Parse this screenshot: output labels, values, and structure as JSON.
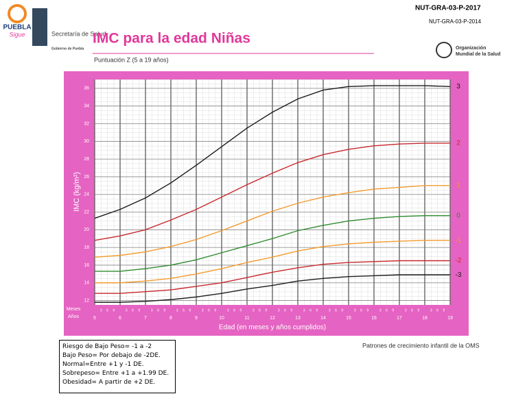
{
  "header": {
    "code_current": "NUT-GRA-03-P-2017",
    "code_previous": "NUT-GRA-03-P-2014",
    "logo_left": "PUEBLA",
    "logo_left_sub": "Sigue",
    "agency": "Secretaría de Salud",
    "agency_sub": "Gobierno de Puebla",
    "who": [
      "Organización",
      "Mundial de la Salud"
    ]
  },
  "chart_data": {
    "type": "line",
    "title": "IMC para la edad Niñas",
    "subtitle": "Puntuación Z (5 a 19 años)",
    "x_label": "Edad (en meses y años cumplidos)",
    "y_label": "IMC (kg/m²)",
    "age_labels": [
      "Meses",
      "Años"
    ],
    "month_ticks": [
      "3",
      "6",
      "9"
    ],
    "x": [
      5,
      6,
      7,
      8,
      9,
      10,
      11,
      12,
      13,
      14,
      15,
      16,
      17,
      18,
      19
    ],
    "xlim": [
      5,
      19
    ],
    "xticks": [
      5,
      6,
      7,
      8,
      9,
      10,
      11,
      12,
      13,
      14,
      15,
      16,
      17,
      18,
      19
    ],
    "ylim": [
      11.5,
      37
    ],
    "yticks": [
      12,
      14,
      16,
      18,
      20,
      22,
      24,
      26,
      28,
      30,
      32,
      34,
      36
    ],
    "grid": true,
    "series": [
      {
        "name": "3",
        "color": "#1a1a1a",
        "values": [
          21.3,
          22.3,
          23.6,
          25.3,
          27.3,
          29.4,
          31.5,
          33.3,
          34.8,
          35.8,
          36.2,
          36.3,
          36.3,
          36.3,
          36.2
        ]
      },
      {
        "name": "2",
        "color": "#c8282d",
        "values": [
          18.8,
          19.3,
          20.0,
          21.1,
          22.3,
          23.7,
          25.1,
          26.4,
          27.6,
          28.5,
          29.1,
          29.5,
          29.7,
          29.8,
          29.8
        ]
      },
      {
        "name": "1",
        "color": "#f39a2b",
        "values": [
          16.9,
          17.1,
          17.5,
          18.1,
          18.9,
          19.9,
          21.0,
          22.1,
          23.0,
          23.7,
          24.2,
          24.6,
          24.8,
          25.0,
          25.0
        ]
      },
      {
        "name": "0",
        "color": "#2e8b2e",
        "values": [
          15.3,
          15.3,
          15.6,
          16.0,
          16.6,
          17.4,
          18.2,
          19.0,
          19.9,
          20.5,
          21.0,
          21.3,
          21.5,
          21.6,
          21.6
        ]
      },
      {
        "name": "-1",
        "color": "#f39a2b",
        "values": [
          14.0,
          14.0,
          14.2,
          14.5,
          15.0,
          15.6,
          16.3,
          16.9,
          17.6,
          18.1,
          18.4,
          18.6,
          18.7,
          18.8,
          18.8
        ]
      },
      {
        "name": "-2",
        "color": "#c8282d",
        "values": [
          12.8,
          12.8,
          13.0,
          13.2,
          13.6,
          14.0,
          14.6,
          15.2,
          15.7,
          16.1,
          16.3,
          16.4,
          16.5,
          16.5,
          16.5
        ]
      },
      {
        "name": "-3",
        "color": "#1a1a1a",
        "values": [
          11.8,
          11.8,
          11.9,
          12.1,
          12.4,
          12.8,
          13.3,
          13.7,
          14.2,
          14.5,
          14.7,
          14.8,
          14.9,
          14.9,
          14.9
        ]
      }
    ]
  },
  "notes": [
    "Riesgo de Bajo Peso= -1 a -2",
    "Bajo Peso= Por debajo de -2DE.",
    "Normal=Entre +1 y -1 DE.",
    "Sobrepeso= Entre +1 a +1.99 DE.",
    "Obesidad= A partir de +2 DE."
  ],
  "source": "Patrones de crecimiento infantil de la OMS"
}
